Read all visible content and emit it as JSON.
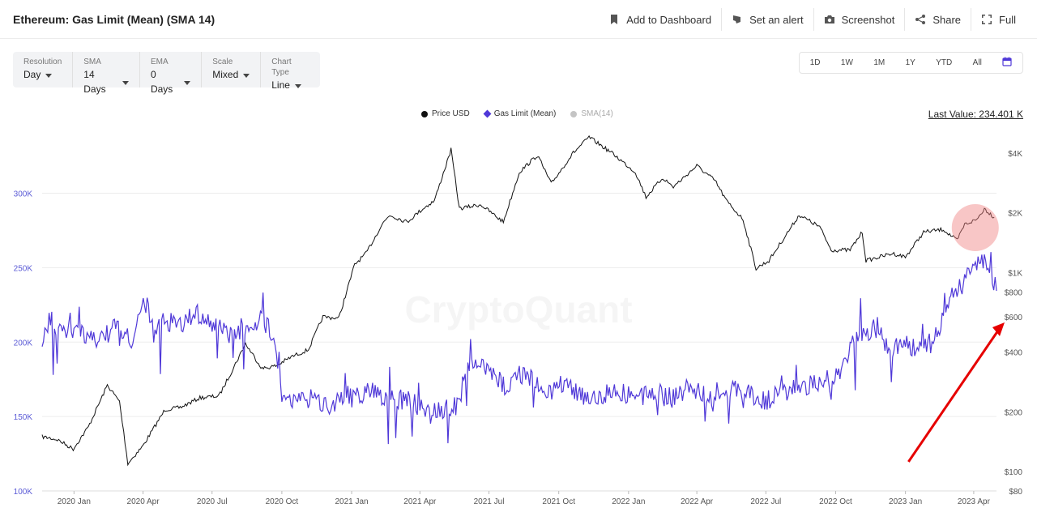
{
  "header": {
    "title": "Ethereum: Gas Limit (Mean) (SMA 14)",
    "actions": [
      {
        "label": "Add to Dashboard",
        "icon": "bookmark-icon"
      },
      {
        "label": "Set an alert",
        "icon": "bell-icon"
      },
      {
        "label": "Screenshot",
        "icon": "camera-icon"
      },
      {
        "label": "Share",
        "icon": "share-icon"
      },
      {
        "label": "Full",
        "icon": "fullscreen-icon"
      }
    ]
  },
  "controls": [
    {
      "label": "Resolution",
      "value": "Day"
    },
    {
      "label": "SMA",
      "value": "14 Days"
    },
    {
      "label": "EMA",
      "value": "0 Days"
    },
    {
      "label": "Scale",
      "value": "Mixed"
    },
    {
      "label": "Chart Type",
      "value": "Line"
    }
  ],
  "ranges": [
    "1D",
    "1W",
    "1M",
    "1Y",
    "YTD",
    "All"
  ],
  "watermark": "CryptoQuant",
  "last_value": "Last Value: 234.401 K",
  "colors": {
    "price": "#111111",
    "gas": "#4f38d8",
    "sma": "#b7b7b7",
    "annotation_circle": "#f08080",
    "arrow": "#e60000"
  },
  "chart_data": {
    "type": "line",
    "legend": [
      {
        "name": "Price USD",
        "color": "#111111",
        "marker": "dot"
      },
      {
        "name": "Gas Limit (Mean)",
        "color": "#4f38d8",
        "marker": "diamond"
      },
      {
        "name": "SMA(14)",
        "color": "#b7b7b7",
        "marker": "dot"
      }
    ],
    "legend_position": "top-center",
    "x_range": [
      "2019-11-20",
      "2023-05-01"
    ],
    "x_ticks": [
      "2020 Jan",
      "2020 Apr",
      "2020 Jul",
      "2020 Oct",
      "2021 Jan",
      "2021 Apr",
      "2021 Jul",
      "2021 Oct",
      "2022 Jan",
      "2022 Apr",
      "2022 Jul",
      "2022 Oct",
      "2023 Jan",
      "2023 Apr"
    ],
    "y_left": {
      "ticks": [
        "100K",
        "150K",
        "200K",
        "250K",
        "300K"
      ],
      "range": [
        100000,
        340000
      ],
      "scale": "linear"
    },
    "y_right": {
      "ticks": [
        "$80",
        "$100",
        "$200",
        "$400",
        "$600",
        "$800",
        "$1K",
        "$2K",
        "$4K"
      ],
      "range": [
        80,
        5000
      ],
      "scale": "log"
    },
    "grid": "horizontal",
    "series": [
      {
        "name": "Price USD",
        "axis": "right",
        "points": [
          [
            "2019-11-20",
            150
          ],
          [
            "2019-12-10",
            145
          ],
          [
            "2019-12-31",
            130
          ],
          [
            "2020-01-20",
            168
          ],
          [
            "2020-02-14",
            272
          ],
          [
            "2020-03-01",
            225
          ],
          [
            "2020-03-12",
            110
          ],
          [
            "2020-04-01",
            135
          ],
          [
            "2020-04-30",
            205
          ],
          [
            "2020-05-20",
            210
          ],
          [
            "2020-06-15",
            235
          ],
          [
            "2020-07-10",
            240
          ],
          [
            "2020-07-27",
            320
          ],
          [
            "2020-08-14",
            440
          ],
          [
            "2020-09-05",
            330
          ],
          [
            "2020-09-23",
            340
          ],
          [
            "2020-10-15",
            380
          ],
          [
            "2020-11-05",
            410
          ],
          [
            "2020-11-24",
            600
          ],
          [
            "2020-12-15",
            590
          ],
          [
            "2021-01-05",
            1100
          ],
          [
            "2021-01-20",
            1250
          ],
          [
            "2021-02-10",
            1750
          ],
          [
            "2021-02-20",
            1950
          ],
          [
            "2021-03-15",
            1800
          ],
          [
            "2021-04-05",
            2100
          ],
          [
            "2021-04-20",
            2300
          ],
          [
            "2021-05-12",
            4150
          ],
          [
            "2021-05-23",
            2100
          ],
          [
            "2021-06-20",
            2200
          ],
          [
            "2021-07-20",
            1800
          ],
          [
            "2021-08-10",
            3200
          ],
          [
            "2021-09-03",
            3900
          ],
          [
            "2021-09-21",
            2800
          ],
          [
            "2021-10-20",
            4000
          ],
          [
            "2021-11-10",
            4800
          ],
          [
            "2021-12-10",
            4000
          ],
          [
            "2022-01-10",
            3200
          ],
          [
            "2022-01-24",
            2400
          ],
          [
            "2022-02-15",
            3000
          ],
          [
            "2022-03-01",
            2700
          ],
          [
            "2022-04-01",
            3450
          ],
          [
            "2022-04-25",
            2900
          ],
          [
            "2022-05-10",
            2300
          ],
          [
            "2022-06-01",
            1850
          ],
          [
            "2022-06-18",
            1050
          ],
          [
            "2022-07-05",
            1150
          ],
          [
            "2022-08-14",
            1950
          ],
          [
            "2022-09-10",
            1700
          ],
          [
            "2022-09-25",
            1300
          ],
          [
            "2022-10-20",
            1300
          ],
          [
            "2022-11-05",
            1600
          ],
          [
            "2022-11-10",
            1150
          ],
          [
            "2022-12-15",
            1250
          ],
          [
            "2023-01-01",
            1200
          ],
          [
            "2023-01-25",
            1600
          ],
          [
            "2023-02-20",
            1650
          ],
          [
            "2023-03-10",
            1450
          ],
          [
            "2023-03-20",
            1750
          ],
          [
            "2023-04-05",
            1850
          ],
          [
            "2023-04-15",
            2100
          ],
          [
            "2023-04-28",
            1900
          ]
        ]
      },
      {
        "name": "Gas Limit (Mean)",
        "axis": "left",
        "points": [
          [
            "2019-11-20",
            200000
          ],
          [
            "2019-12-01",
            215000
          ],
          [
            "2019-12-15",
            205000
          ],
          [
            "2020-01-01",
            210000
          ],
          [
            "2020-01-20",
            200000
          ],
          [
            "2020-02-10",
            205000
          ],
          [
            "2020-03-01",
            210000
          ],
          [
            "2020-03-15",
            200000
          ],
          [
            "2020-04-03",
            230000
          ],
          [
            "2020-04-15",
            205000
          ],
          [
            "2020-05-01",
            215000
          ],
          [
            "2020-05-20",
            210000
          ],
          [
            "2020-06-10",
            220000
          ],
          [
            "2020-07-01",
            212000
          ],
          [
            "2020-07-20",
            205000
          ],
          [
            "2020-08-10",
            210000
          ],
          [
            "2020-09-01",
            215000
          ],
          [
            "2020-09-22",
            205000
          ],
          [
            "2020-10-01",
            165000
          ],
          [
            "2020-10-20",
            160000
          ],
          [
            "2020-11-10",
            162000
          ],
          [
            "2020-12-01",
            158000
          ],
          [
            "2020-12-20",
            163000
          ],
          [
            "2021-01-10",
            165000
          ],
          [
            "2021-02-01",
            168000
          ],
          [
            "2021-02-20",
            160000
          ],
          [
            "2021-03-10",
            162000
          ],
          [
            "2021-03-25",
            158000
          ],
          [
            "2021-04-15",
            152000
          ],
          [
            "2021-05-01",
            155000
          ],
          [
            "2021-05-20",
            158000
          ],
          [
            "2021-06-05",
            185000
          ],
          [
            "2021-06-20",
            185000
          ],
          [
            "2021-07-10",
            175000
          ],
          [
            "2021-07-25",
            170000
          ],
          [
            "2021-08-10",
            180000
          ],
          [
            "2021-09-01",
            172000
          ],
          [
            "2021-09-20",
            168000
          ],
          [
            "2021-10-10",
            172000
          ],
          [
            "2021-11-01",
            165000
          ],
          [
            "2021-11-20",
            162000
          ],
          [
            "2021-12-10",
            168000
          ],
          [
            "2022-01-01",
            165000
          ],
          [
            "2022-01-20",
            163000
          ],
          [
            "2022-02-10",
            165000
          ],
          [
            "2022-03-01",
            162000
          ],
          [
            "2022-03-20",
            170000
          ],
          [
            "2022-04-10",
            165000
          ],
          [
            "2022-05-01",
            160000
          ],
          [
            "2022-05-20",
            170000
          ],
          [
            "2022-06-10",
            165000
          ],
          [
            "2022-07-01",
            160000
          ],
          [
            "2022-07-20",
            165000
          ],
          [
            "2022-08-10",
            170000
          ],
          [
            "2022-09-01",
            172000
          ],
          [
            "2022-09-25",
            168000
          ],
          [
            "2022-10-10",
            185000
          ],
          [
            "2022-10-25",
            200000
          ],
          [
            "2022-11-10",
            205000
          ],
          [
            "2022-11-25",
            210000
          ],
          [
            "2022-12-10",
            195000
          ],
          [
            "2023-01-01",
            200000
          ],
          [
            "2023-01-20",
            195000
          ],
          [
            "2023-02-05",
            200000
          ],
          [
            "2023-02-20",
            215000
          ],
          [
            "2023-03-05",
            235000
          ],
          [
            "2023-03-20",
            240000
          ],
          [
            "2023-04-05",
            255000
          ],
          [
            "2023-04-20",
            250000
          ],
          [
            "2023-05-01",
            234401
          ]
        ]
      }
    ],
    "annotations": [
      {
        "type": "circle",
        "at": "2023-04-03",
        "color": "#f08080"
      },
      {
        "type": "arrow",
        "from": "2023-01-05",
        "to": "2023-05-01",
        "color": "#e60000"
      }
    ]
  }
}
